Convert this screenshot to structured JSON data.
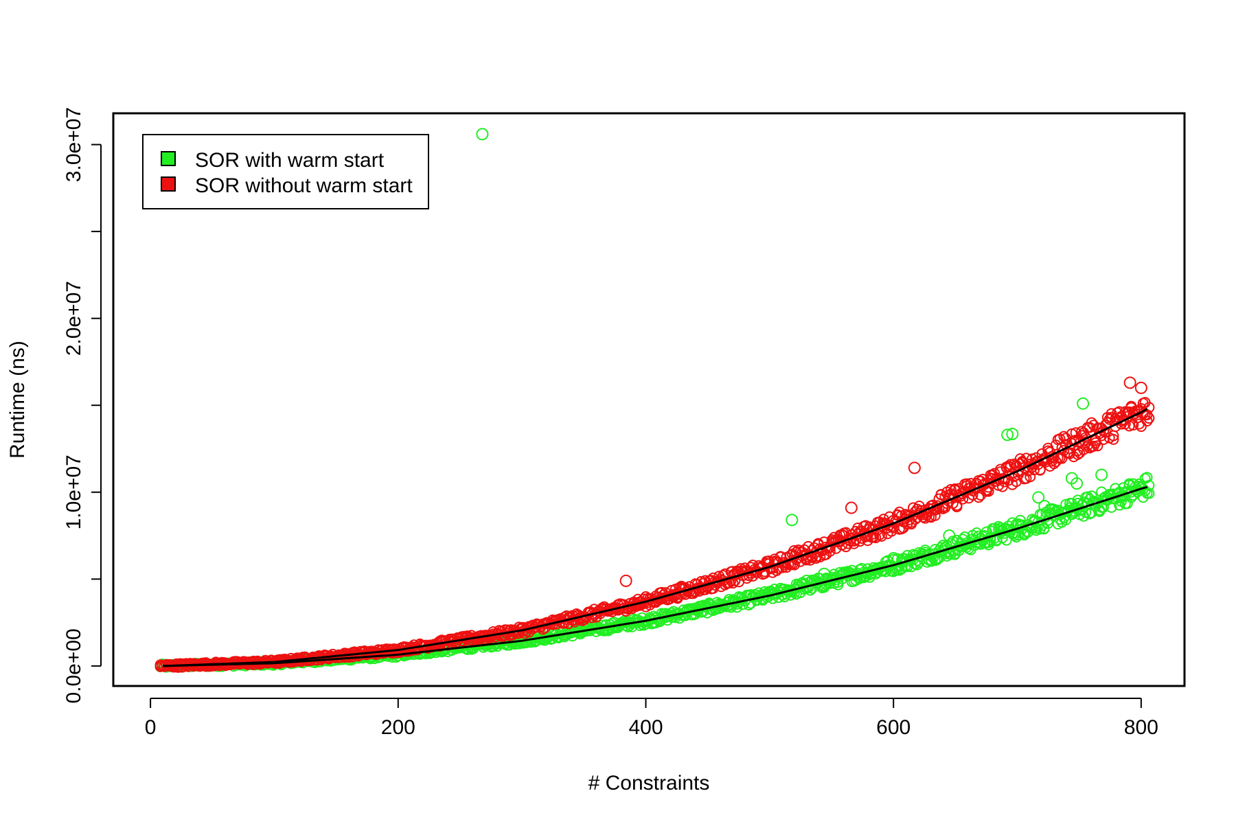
{
  "chart_data": {
    "type": "scatter",
    "title": "",
    "xlabel": "# Constraints",
    "ylabel": "Runtime (ns)",
    "xlim": [
      -30,
      835
    ],
    "ylim": [
      -1150000,
      31800000
    ],
    "x_ticks": [
      0,
      200,
      400,
      600,
      800
    ],
    "x_tick_labels": [
      "0",
      "200",
      "400",
      "600",
      "800"
    ],
    "y_ticks": [
      0,
      5000000,
      10000000,
      15000000,
      20000000,
      25000000,
      30000000
    ],
    "y_tick_labels": [
      "0.0e+00",
      "",
      "1.0e+07",
      "",
      "2.0e+07",
      "",
      "3.0e+07"
    ],
    "grid": false,
    "legend_position": "top-left",
    "series": [
      {
        "name": "SOR with warm start",
        "color": "#22ee22",
        "marker": "open-circle",
        "fit_curve": {
          "color": "#000000",
          "x": [
            10,
            100,
            200,
            300,
            400,
            500,
            600,
            700,
            800,
            805
          ],
          "y": [
            0,
            160000,
            650000,
            1450000,
            2600000,
            4050000,
            5800000,
            7900000,
            10200000,
            10300000
          ]
        },
        "outliers": [
          {
            "x": 268,
            "y": 30600000
          },
          {
            "x": 518,
            "y": 8400000
          },
          {
            "x": 692,
            "y": 13300000
          },
          {
            "x": 696,
            "y": 13350000
          },
          {
            "x": 753,
            "y": 15100000
          },
          {
            "x": 744,
            "y": 10800000
          },
          {
            "x": 748,
            "y": 10500000
          },
          {
            "x": 768,
            "y": 11000000
          },
          {
            "x": 717,
            "y": 9700000
          },
          {
            "x": 722,
            "y": 9200000
          },
          {
            "x": 645,
            "y": 7500000
          },
          {
            "x": 600,
            "y": 6200000
          },
          {
            "x": 544,
            "y": 5300000
          },
          {
            "x": 530,
            "y": 4900000
          }
        ]
      },
      {
        "name": "SOR without warm start",
        "color": "#ee1111",
        "marker": "open-circle",
        "fit_curve": {
          "color": "#000000",
          "x": [
            10,
            100,
            200,
            300,
            400,
            500,
            600,
            700,
            800,
            805
          ],
          "y": [
            0,
            230000,
            920000,
            2050000,
            3700000,
            5700000,
            8200000,
            11200000,
            14600000,
            14800000
          ]
        },
        "outliers": [
          {
            "x": 384,
            "y": 4900000
          },
          {
            "x": 566,
            "y": 9100000
          },
          {
            "x": 617,
            "y": 11400000
          },
          {
            "x": 520,
            "y": 6600000
          },
          {
            "x": 791,
            "y": 16300000
          },
          {
            "x": 800,
            "y": 16000000
          },
          {
            "x": 470,
            "y": 5400000
          },
          {
            "x": 430,
            "y": 4400000
          }
        ]
      }
    ]
  }
}
